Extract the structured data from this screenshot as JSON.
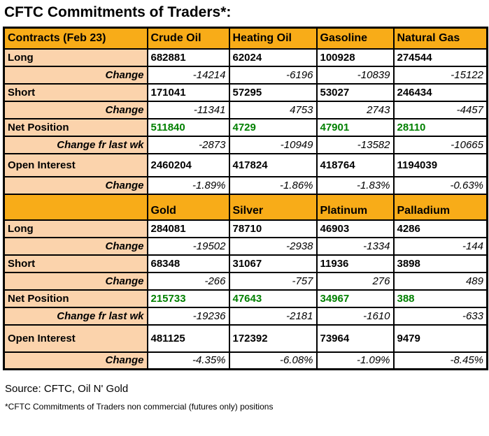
{
  "title": "CFTC Commitments of Traders*:",
  "colors": {
    "header_bg": "#F8AC18",
    "label_bg": "#FBD3AC",
    "net_position_green": "#008000",
    "border": "#000000"
  },
  "sections": [
    {
      "header": [
        "Contracts (Feb 23)",
        "Crude Oil",
        "Heating Oil",
        "Gasoline",
        "Natural Gas"
      ],
      "rows": [
        {
          "label": "Long",
          "values": [
            "682881",
            "62024",
            "100928",
            "274544"
          ]
        },
        {
          "label": "Change",
          "values": [
            "-14214",
            "-6196",
            "-10839",
            "-15122"
          ]
        },
        {
          "label": "Short",
          "values": [
            "171041",
            "57295",
            "53027",
            "246434"
          ]
        },
        {
          "label": "Change",
          "values": [
            "-11341",
            "4753",
            "2743",
            "-4457"
          ]
        },
        {
          "label": "Net Position",
          "values": [
            "511840",
            "4729",
            "47901",
            "28110"
          ]
        },
        {
          "label": "Change fr last wk",
          "values": [
            "-2873",
            "-10949",
            "-13582",
            "-10665"
          ]
        },
        {
          "label": "Open Interest",
          "values": [
            "2460204",
            "417824",
            "418764",
            "1194039"
          ]
        },
        {
          "label": "Change",
          "values": [
            "-1.89%",
            "-1.86%",
            "-1.83%",
            "-0.63%"
          ]
        }
      ]
    },
    {
      "header": [
        "",
        "Gold",
        "Silver",
        "Platinum",
        "Palladium"
      ],
      "rows": [
        {
          "label": "Long",
          "values": [
            "284081",
            "78710",
            "46903",
            "4286"
          ]
        },
        {
          "label": "Change",
          "values": [
            "-19502",
            "-2938",
            "-1334",
            "-144"
          ]
        },
        {
          "label": "Short",
          "values": [
            "68348",
            "31067",
            "11936",
            "3898"
          ]
        },
        {
          "label": "Change",
          "values": [
            "-266",
            "-757",
            "276",
            "489"
          ]
        },
        {
          "label": "Net Position",
          "values": [
            "215733",
            "47643",
            "34967",
            "388"
          ]
        },
        {
          "label": "Change fr last wk",
          "values": [
            "-19236",
            "-2181",
            "-1610",
            "-633"
          ]
        },
        {
          "label": "Open Interest",
          "values": [
            "481125",
            "172392",
            "73964",
            "9479"
          ]
        },
        {
          "label": "Change",
          "values": [
            "-4.35%",
            "-6.08%",
            "-1.09%",
            "-8.45%"
          ]
        }
      ]
    }
  ],
  "footer": {
    "source": "Source:  CFTC, Oil N' Gold",
    "footnote": "*CFTC Commitments of Traders non commercial (futures only) positions"
  }
}
